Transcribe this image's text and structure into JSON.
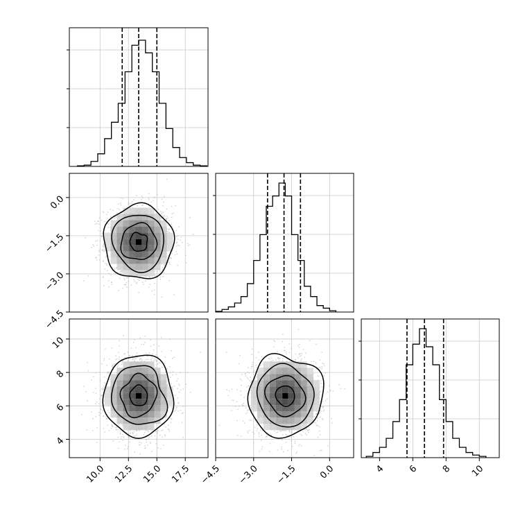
{
  "chart_data": {
    "type": "corner",
    "grid": true,
    "params": [
      {
        "range": [
          7.3,
          19.5
        ],
        "ticks": [
          10.0,
          12.5,
          15.0,
          17.5
        ],
        "tick_labels": [
          "10.0",
          "12.5",
          "15.0",
          "17.5"
        ],
        "quantiles": [
          11.95,
          13.4,
          15.0
        ],
        "hist": {
          "edges": [
            8.0,
            8.6,
            9.2,
            9.8,
            10.4,
            11.0,
            11.6,
            12.2,
            12.8,
            13.4,
            14.0,
            14.6,
            15.2,
            15.8,
            16.4,
            17.0,
            17.6,
            18.2,
            18.8,
            19.4
          ],
          "counts": [
            0.005,
            0.01,
            0.04,
            0.1,
            0.22,
            0.35,
            0.5,
            0.75,
            0.96,
            1.0,
            0.9,
            0.75,
            0.5,
            0.3,
            0.15,
            0.07,
            0.03,
            0.01,
            0.005
          ]
        },
        "peak_fraction": 0.91
      },
      {
        "range": [
          -4.5,
          0.95
        ],
        "ticks": [
          -4.5,
          -3.0,
          -1.5,
          0.0
        ],
        "tick_labels": [
          "−4.5",
          "−3.0",
          "−1.5",
          "0.0"
        ],
        "quantiles": [
          -2.45,
          -1.8,
          -1.15
        ],
        "hist": {
          "edges": [
            -4.5,
            -4.25,
            -4.0,
            -3.75,
            -3.5,
            -3.25,
            -3.0,
            -2.75,
            -2.5,
            -2.25,
            -2.0,
            -1.75,
            -1.5,
            -1.25,
            -1.0,
            -0.75,
            -0.5,
            -0.25,
            0.0,
            0.25
          ],
          "counts": [
            0.005,
            0.02,
            0.04,
            0.07,
            0.12,
            0.22,
            0.4,
            0.6,
            0.82,
            0.9,
            1.0,
            0.9,
            0.6,
            0.4,
            0.2,
            0.12,
            0.05,
            0.03,
            0.01
          ]
        },
        "peak_fraction": 0.93
      },
      {
        "range": [
          2.9,
          11.2
        ],
        "ticks": [
          4,
          6,
          8,
          10
        ],
        "tick_labels": [
          "4",
          "6",
          "8",
          "10"
        ],
        "quantiles": [
          5.65,
          6.7,
          7.85
        ],
        "hist": {
          "edges": [
            3.2,
            3.6,
            4.0,
            4.4,
            4.8,
            5.2,
            5.6,
            6.0,
            6.4,
            6.8,
            7.2,
            7.6,
            8.0,
            8.4,
            8.8,
            9.2,
            9.6,
            10.0,
            10.4
          ],
          "counts": [
            0.01,
            0.04,
            0.08,
            0.15,
            0.28,
            0.45,
            0.72,
            0.88,
            1.0,
            0.86,
            0.72,
            0.45,
            0.28,
            0.15,
            0.08,
            0.04,
            0.02,
            0.01
          ]
        },
        "peak_fraction": 0.93
      }
    ],
    "joint": [
      {
        "x_param": 0,
        "y_param": 1,
        "mean": [
          13.4,
          -1.75
        ],
        "std": [
          1.5,
          0.72
        ],
        "contour_sigmas": [
          0.5,
          1.0,
          1.5,
          2.0
        ]
      },
      {
        "x_param": 0,
        "y_param": 2,
        "mean": [
          13.4,
          6.6
        ],
        "std": [
          1.5,
          1.2
        ],
        "contour_sigmas": [
          0.5,
          1.0,
          1.5,
          2.0
        ]
      },
      {
        "x_param": 1,
        "y_param": 2,
        "mean": [
          -1.75,
          6.6
        ],
        "std": [
          0.72,
          1.2
        ],
        "contour_sigmas": [
          0.5,
          1.0,
          1.5,
          2.0
        ]
      }
    ],
    "colors": {
      "line": "#000000",
      "grid": "#c8c8c8",
      "point": "#b4b4b4",
      "frame": "#000000",
      "background": "#ffffff"
    }
  }
}
